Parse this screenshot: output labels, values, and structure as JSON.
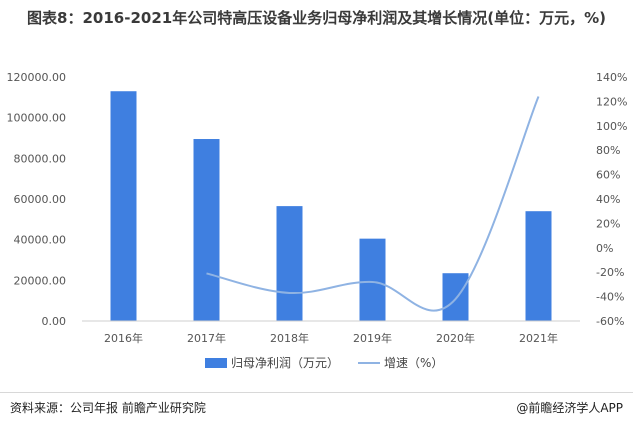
{
  "title": "图表8：2016-2021年公司特高压设备业务归母净利润及其增长情况(单位：万元，%)",
  "source_left": "资料来源：公司年报 前瞻产业研究院",
  "source_right": "@前瞻经济学人APP",
  "colors": {
    "bar": "#3f7fe0",
    "line": "#8fb3e3",
    "grid": "#e6e6e6"
  },
  "chart_data": {
    "type": "bar",
    "categories": [
      "2016年",
      "2017年",
      "2018年",
      "2019年",
      "2020年",
      "2021年"
    ],
    "series": [
      {
        "name": "归母净利润（万元）",
        "type": "bar",
        "axis": "left",
        "values": [
          113000,
          89500,
          56500,
          40500,
          23500,
          54000
        ]
      },
      {
        "name": "增速（%）",
        "type": "line",
        "axis": "right",
        "values": [
          null,
          -21,
          -37,
          -28,
          -42,
          124
        ]
      }
    ],
    "y_left": {
      "min": 0,
      "max": 120000,
      "ticks": [
        "0.00",
        "20000.00",
        "40000.00",
        "60000.00",
        "80000.00",
        "100000.00",
        "120000.00"
      ]
    },
    "y_right": {
      "min": -60,
      "max": 140,
      "ticks": [
        "-60%",
        "-40%",
        "-20%",
        "0%",
        "20%",
        "40%",
        "60%",
        "80%",
        "100%",
        "120%",
        "140%"
      ]
    },
    "legend_position": "bottom",
    "grid": false
  }
}
